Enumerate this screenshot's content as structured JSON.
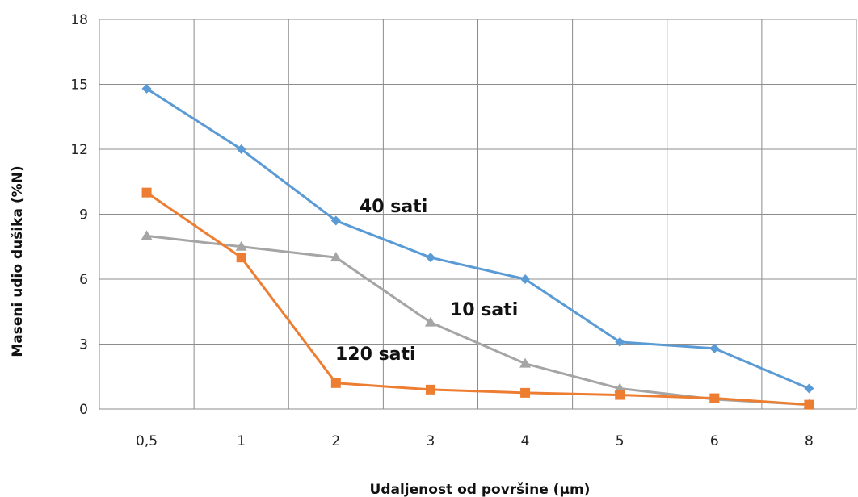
{
  "chart_data": {
    "type": "line",
    "title": "",
    "xlabel": "Udaljenost od površine (µm)",
    "ylabel": "Maseni udio dušika (%N)",
    "categories": [
      "0,5",
      "1",
      "2",
      "3",
      "4",
      "5",
      "6",
      "8"
    ],
    "yticks": [
      "0",
      "3",
      "6",
      "9",
      "12",
      "15",
      "18"
    ],
    "ylim": [
      0,
      18
    ],
    "grid": true,
    "legend": "none",
    "series": [
      {
        "name": "40 sati",
        "color": "#5b9bd5",
        "marker": "diamond",
        "values": [
          14.8,
          12.0,
          8.7,
          7.0,
          6.0,
          3.1,
          2.8,
          0.95
        ]
      },
      {
        "name": "10 sati",
        "color": "#a5a5a5",
        "marker": "triangle",
        "values": [
          8.0,
          7.5,
          7.0,
          4.0,
          2.1,
          0.95,
          0.45,
          0.2
        ]
      },
      {
        "name": "120 sati",
        "color": "#ed7d31",
        "marker": "square",
        "values": [
          10.0,
          7.0,
          1.2,
          0.9,
          0.75,
          0.65,
          0.5,
          0.2
        ]
      }
    ]
  }
}
